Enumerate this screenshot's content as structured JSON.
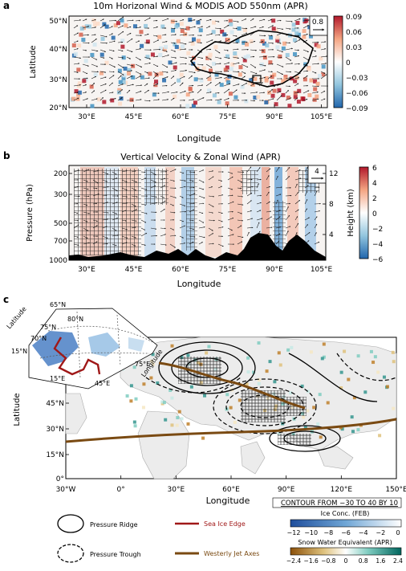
{
  "panel_a": {
    "letter": "a",
    "title": "10m Horizonal Wind & MODIS AOD 550nm (APR)",
    "ylabel": "Latitude",
    "xlabel": "Longitude",
    "yticks": [
      "50°N",
      "40°N",
      "30°N",
      "20°N"
    ],
    "xticks": [
      "30°E",
      "45°E",
      "60°E",
      "75°E",
      "90°E",
      "105°E"
    ],
    "ref_vector": "0.8",
    "colorbar": {
      "ticks": [
        "0.09",
        "0.06",
        "0.03",
        "0",
        "−0.03",
        "−0.06",
        "−0.09"
      ],
      "colors": [
        "#b2182b",
        "#f4a582",
        "#ffffff",
        "#92c5de",
        "#2166ac"
      ]
    }
  },
  "panel_b": {
    "letter": "b",
    "title": "Vertical Velocity & Zonal Wind (APR)",
    "ylabel": "Pressure (hPa)",
    "y2label": "Height (km)",
    "xlabel": "Longitude",
    "yticks": [
      "200",
      "300",
      "500",
      "700",
      "1000"
    ],
    "y2ticks": [
      "12",
      "8",
      "4"
    ],
    "xticks": [
      "30°E",
      "45°E",
      "60°E",
      "75°E",
      "90°E",
      "105°E"
    ],
    "ref_vector": "4",
    "colorbar": {
      "ticks": [
        "6",
        "4",
        "2",
        "0",
        "−2",
        "−4",
        "−6"
      ]
    }
  },
  "panel_c": {
    "letter": "c",
    "ylabel": "Latitude",
    "xlabel": "Longitude",
    "yticks": [
      "45°N",
      "30°N",
      "15°N",
      "0°"
    ],
    "xticks": [
      "30°W",
      "0°",
      "30°E",
      "60°E",
      "90°E",
      "120°E",
      "150°E"
    ],
    "inset": {
      "lat_label": "Latitude",
      "lon_label": "Longitude",
      "lat_ticks": [
        "65°N",
        "80°N",
        "75°N",
        "70°N",
        "15°N"
      ],
      "lon_ticks": [
        "15°E",
        "45°E",
        "75°E"
      ]
    },
    "contour_note": "CONTOUR FROM −30 TO 40 BY 10",
    "ice_bar": {
      "title": "Ice Conc. (FEB)",
      "ticks": [
        "−12",
        "−10",
        "−8",
        "−6",
        "−4",
        "−2",
        "0"
      ]
    },
    "snow_bar": {
      "title": "Snow Water Equivalent (APR)",
      "ticks": [
        "−2.4",
        "−1.6",
        "−0.8",
        "0",
        "0.8",
        "1.6",
        "2.4"
      ]
    },
    "legend": {
      "ridge": "Pressure Ridge",
      "trough": "Pressure Trough",
      "ice_edge": "Sea Ice Edge",
      "jet": "Westerly Jet Axes"
    },
    "colors": {
      "ice_edge": "#a01818",
      "jet": "#7a4a12"
    }
  }
}
